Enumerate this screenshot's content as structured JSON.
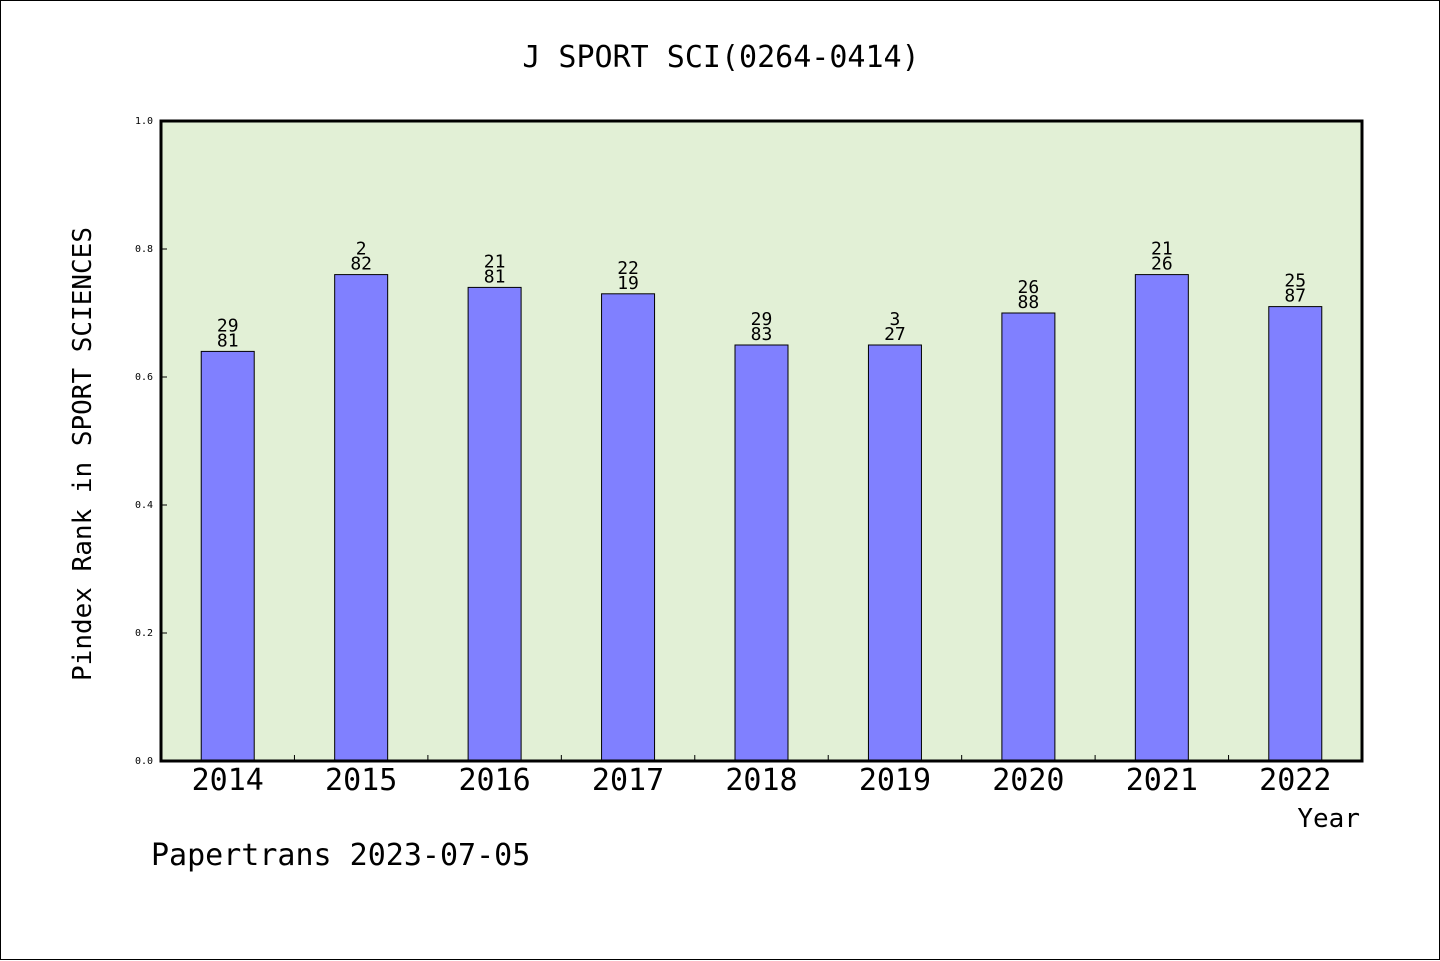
{
  "chart_data": {
    "type": "bar",
    "title": "J SPORT SCI(0264-0414)",
    "ylabel": "Pindex Rank in SPORT SCIENCES",
    "xlabel": "Year",
    "ylim": [
      0,
      1.0
    ],
    "yticks": [
      "0.0",
      "0.2",
      "0.4",
      "0.6",
      "0.8",
      "1.0"
    ],
    "categories": [
      "2014",
      "2015",
      "2016",
      "2017",
      "2018",
      "2019",
      "2020",
      "2021",
      "2022"
    ],
    "values": [
      0.64,
      0.76,
      0.74,
      0.73,
      0.65,
      0.65,
      0.7,
      0.76,
      0.71
    ],
    "bar_labels": [
      [
        "29",
        "81"
      ],
      [
        "2",
        "82"
      ],
      [
        "21",
        "81"
      ],
      [
        "22",
        "19"
      ],
      [
        "29",
        "83"
      ],
      [
        "3",
        "27"
      ],
      [
        "26",
        "88"
      ],
      [
        "21",
        "26"
      ],
      [
        "25",
        "87"
      ]
    ],
    "grid": false,
    "colors": {
      "bar": "#8080ff",
      "plot_bg": "#e2f0d6",
      "axis": "#000000"
    }
  },
  "footer": "Papertrans 2023-07-05"
}
